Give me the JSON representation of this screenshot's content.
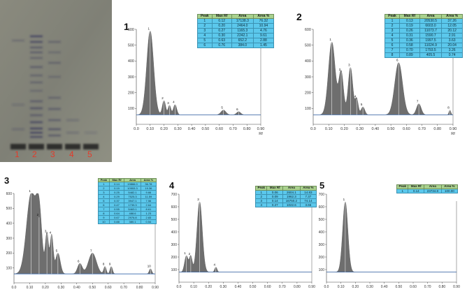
{
  "plate": {
    "lanes": [
      "1",
      "2",
      "3",
      "4",
      "5"
    ]
  },
  "colors": {
    "peak_fill": "#6e6e6e",
    "baseline": "#3f6fb3",
    "table_header": "#a9d18e",
    "table_cell": "#5bc8ec",
    "lane_label": "#e23b2a"
  },
  "chart_data": [
    {
      "id": "1",
      "type": "area",
      "xlabel": "Rf",
      "xlim": [
        0.0,
        0.9
      ],
      "ylim": [
        0,
        600
      ],
      "xticks": [
        "0.0",
        "0.10",
        "0.20",
        "0.30",
        "0.40",
        "0.50",
        "0.60",
        "0.70",
        "0.80",
        "0.90"
      ],
      "yticks": [
        "100",
        "200",
        "300",
        "400",
        "500",
        "600"
      ],
      "baseline": 60,
      "peaks": [
        {
          "label": "1",
          "rf": 0.1,
          "height": 590,
          "width": 0.025
        },
        {
          "label": "2",
          "rf": 0.2,
          "height": 150,
          "width": 0.012
        },
        {
          "label": "3",
          "rf": 0.24,
          "height": 120,
          "width": 0.01
        },
        {
          "label": "4",
          "rf": 0.28,
          "height": 125,
          "width": 0.012
        },
        {
          "label": "5",
          "rf": 0.63,
          "height": 90,
          "width": 0.018
        },
        {
          "label": "6",
          "rf": 0.74,
          "height": 80,
          "width": 0.015
        }
      ],
      "table": {
        "headers": [
          "Peak",
          "Max Rf",
          "Area",
          "Area %"
        ],
        "rows": [
          [
            "1",
            "0.12",
            "17138.3",
            "76.32"
          ],
          [
            "2",
            "0.20",
            "2464.0",
            "10.94"
          ],
          [
            "3",
            "0.27",
            "1165.3",
            "4.76"
          ],
          [
            "4",
            "0.30",
            "2242.1",
            "9.61"
          ],
          [
            "5",
            "0.63",
            "652.2",
            "2.88"
          ],
          [
            "6",
            "0.76",
            "384.0",
            "1.45"
          ]
        ]
      }
    },
    {
      "id": "2",
      "type": "area",
      "xlabel": "Rf",
      "xlim": [
        0.0,
        0.9
      ],
      "ylim": [
        0,
        600
      ],
      "xticks": [
        "0.0",
        "0.10",
        "0.20",
        "0.30",
        "0.40",
        "0.50",
        "0.60",
        "0.70",
        "0.80",
        "0.90"
      ],
      "yticks": [
        "100",
        "200",
        "300",
        "400",
        "500",
        "600"
      ],
      "baseline": 60,
      "peaks": [
        {
          "label": "1",
          "rf": 0.12,
          "height": 520,
          "width": 0.022
        },
        {
          "label": "2",
          "rf": 0.18,
          "height": 330,
          "width": 0.015
        },
        {
          "label": "3",
          "rf": 0.24,
          "height": 360,
          "width": 0.015
        },
        {
          "label": "4",
          "rf": 0.28,
          "height": 160,
          "width": 0.01
        },
        {
          "label": "5",
          "rf": 0.32,
          "height": 110,
          "width": 0.012
        },
        {
          "label": "6",
          "rf": 0.55,
          "height": 390,
          "width": 0.025
        },
        {
          "label": "7",
          "rf": 0.68,
          "height": 130,
          "width": 0.015
        },
        {
          "label": "8",
          "rf": 0.88,
          "height": 90,
          "width": 0.006
        }
      ],
      "table": {
        "headers": [
          "Peak",
          "Max Rf",
          "Area",
          "Area %"
        ],
        "rows": [
          [
            "1",
            "0.13",
            "20530.5",
            "37.26"
          ],
          [
            "2",
            "0.19",
            "6603.0",
            "12.05"
          ],
          [
            "3",
            "0.26",
            "11073.7",
            "20.12"
          ],
          [
            "4",
            "0.31",
            "1590.7",
            "2.91"
          ],
          [
            "5",
            "0.36",
            "1997.5",
            "3.63"
          ],
          [
            "6",
            "0.58",
            "11024.9",
            "20.04"
          ],
          [
            "7",
            "0.70",
            "1793.5",
            "3.26"
          ],
          [
            "8",
            "0.89",
            "405.5",
            "0.74"
          ]
        ]
      }
    },
    {
      "id": "3",
      "type": "area",
      "xlim": [
        0.0,
        0.9
      ],
      "ylim": [
        0,
        600
      ],
      "xticks": [
        "0.0",
        "0.10",
        "0.20",
        "0.30",
        "0.40",
        "0.50",
        "0.60",
        "0.70",
        "0.80",
        "0.90"
      ],
      "yticks": [
        "100",
        "200",
        "300",
        "400",
        "500",
        "600"
      ],
      "baseline": 60,
      "peaks": [
        {
          "label": "1",
          "rf": 0.11,
          "height": 600,
          "width": 0.03
        },
        {
          "label": "2",
          "rf": 0.16,
          "height": 440,
          "width": 0.018
        },
        {
          "label": "3",
          "rf": 0.21,
          "height": 330,
          "width": 0.01
        },
        {
          "label": "4",
          "rf": 0.24,
          "height": 320,
          "width": 0.01
        },
        {
          "label": "5",
          "rf": 0.28,
          "height": 200,
          "width": 0.015
        },
        {
          "label": "6",
          "rf": 0.42,
          "height": 130,
          "width": 0.015
        },
        {
          "label": "7",
          "rf": 0.5,
          "height": 200,
          "width": 0.025
        },
        {
          "label": "8",
          "rf": 0.58,
          "height": 110,
          "width": 0.008
        },
        {
          "label": "9",
          "rf": 0.62,
          "height": 110,
          "width": 0.008
        },
        {
          "label": "10",
          "rf": 0.87,
          "height": 95,
          "width": 0.008
        }
      ],
      "table": {
        "headers": [
          "Peak",
          "Max Rf",
          "Area",
          "Area %"
        ],
        "rows": [
          [
            "1",
            "0.14",
            "19866.0",
            "36.78"
          ],
          [
            "2",
            "0.19",
            "10553.3",
            "19.36"
          ],
          [
            "3",
            "0.25",
            "5482.1",
            "9.66"
          ],
          [
            "4",
            "0.29",
            "7525.3",
            "11.59"
          ],
          [
            "5",
            "0.37",
            "3947.1",
            "7.56"
          ],
          [
            "6",
            "0.47",
            "1739.3",
            "2.64"
          ],
          [
            "7",
            "0.55",
            "5463.1",
            "8.61"
          ],
          [
            "8",
            "0.64",
            "488.6",
            "1.23"
          ],
          [
            "9",
            "0.67",
            "2976.8",
            "2.83"
          ],
          [
            "10",
            "0.88",
            "380.1",
            "0.54"
          ]
        ]
      }
    },
    {
      "id": "4",
      "type": "area",
      "xlim": [
        0.0,
        0.9
      ],
      "ylim": [
        0,
        700
      ],
      "xticks": [
        "0.0",
        "0.10",
        "0.20",
        "0.30",
        "0.40",
        "0.50",
        "0.60",
        "0.70",
        "0.80",
        "0.90"
      ],
      "yticks": [
        "100",
        "200",
        "300",
        "400",
        "500",
        "600",
        "700"
      ],
      "baseline": 80,
      "peaks": [
        {
          "label": "1",
          "rf": 0.05,
          "height": 210,
          "width": 0.012
        },
        {
          "label": "2",
          "rf": 0.08,
          "height": 205,
          "width": 0.01
        },
        {
          "label": "3",
          "rf": 0.14,
          "height": 640,
          "width": 0.018
        },
        {
          "label": "4",
          "rf": 0.25,
          "height": 120,
          "width": 0.008
        }
      ],
      "table": {
        "headers": [
          "Peak",
          "Max Rf",
          "Area",
          "Area %"
        ],
        "rows": [
          [
            "1",
            "0.06",
            "2604.1",
            "14.83"
          ],
          [
            "2",
            "0.09",
            "1962.3",
            "7.37"
          ],
          [
            "3",
            "0.14",
            "16750.2",
            "74.14"
          ],
          [
            "4",
            "0.27",
            "1022.6",
            "3.66"
          ]
        ]
      }
    },
    {
      "id": "5",
      "type": "area",
      "xlim": [
        0.0,
        0.9
      ],
      "ylim": [
        0,
        700
      ],
      "xticks": [
        "0.0",
        "0.10",
        "0.20",
        "0.30",
        "0.40",
        "0.50",
        "0.60",
        "0.70",
        "0.80",
        "0.90"
      ],
      "yticks": [
        "100",
        "200",
        "300",
        "400",
        "500",
        "600",
        "700"
      ],
      "baseline": 80,
      "peaks": [
        {
          "label": "1",
          "rf": 0.13,
          "height": 640,
          "width": 0.018
        }
      ],
      "table": {
        "headers": [
          "Peak",
          "Max Rf",
          "Area",
          "Area %"
        ],
        "rows": [
          [
            "1",
            "0.14",
            "23734.8",
            "100.00"
          ]
        ]
      }
    }
  ]
}
